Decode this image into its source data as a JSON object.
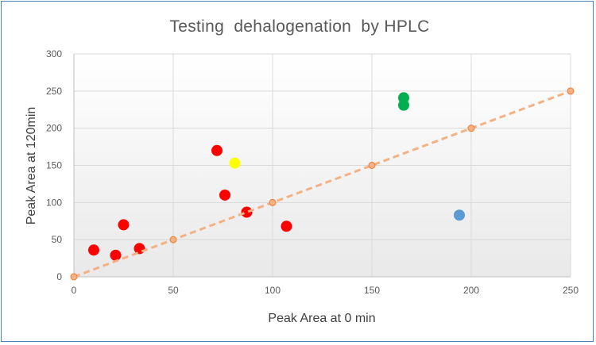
{
  "chart_data": {
    "type": "scatter",
    "title": "Testing  dehalogenation  by HPLC",
    "xlabel": "Peak Area at 0 min",
    "ylabel": "Peak Area at 120min",
    "xlim": [
      0,
      250
    ],
    "ylim": [
      0,
      300
    ],
    "x_ticks": [
      "0",
      "50",
      "100",
      "150",
      "200",
      "250"
    ],
    "y_ticks": [
      "0",
      "50",
      "100",
      "150",
      "200",
      "250",
      "300"
    ],
    "grid": true,
    "legend": "none",
    "series": [
      {
        "color": "#ff0000",
        "marker": "circle",
        "points": [
          {
            "x": 10,
            "y": 36
          },
          {
            "x": 21,
            "y": 29
          },
          {
            "x": 25,
            "y": 70
          },
          {
            "x": 33,
            "y": 38
          },
          {
            "x": 72,
            "y": 170
          },
          {
            "x": 76,
            "y": 110
          },
          {
            "x": 87,
            "y": 87
          },
          {
            "x": 107,
            "y": 68
          }
        ]
      },
      {
        "color": "#ffff00",
        "marker": "circle",
        "points": [
          {
            "x": 81,
            "y": 153
          }
        ]
      },
      {
        "color": "#00b050",
        "marker": "circle",
        "points": [
          {
            "x": 166,
            "y": 241
          },
          {
            "x": 166,
            "y": 231
          }
        ]
      },
      {
        "color": "#5b9bd5",
        "marker": "circle",
        "points": [
          {
            "x": 194,
            "y": 83
          }
        ]
      },
      {
        "color": "#f4b183",
        "marker": "small-circle",
        "line": "dashed",
        "points": [
          {
            "x": 0,
            "y": 0
          },
          {
            "x": 50,
            "y": 50
          },
          {
            "x": 100,
            "y": 100
          },
          {
            "x": 150,
            "y": 150
          },
          {
            "x": 200,
            "y": 200
          },
          {
            "x": 250,
            "y": 250
          }
        ]
      }
    ]
  }
}
